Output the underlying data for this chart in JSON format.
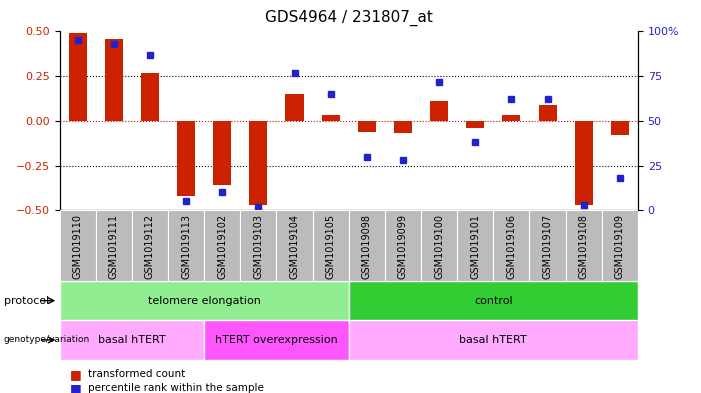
{
  "title": "GDS4964 / 231807_at",
  "samples": [
    "GSM1019110",
    "GSM1019111",
    "GSM1019112",
    "GSM1019113",
    "GSM1019102",
    "GSM1019103",
    "GSM1019104",
    "GSM1019105",
    "GSM1019098",
    "GSM1019099",
    "GSM1019100",
    "GSM1019101",
    "GSM1019106",
    "GSM1019107",
    "GSM1019108",
    "GSM1019109"
  ],
  "transformed_count": [
    0.49,
    0.46,
    0.27,
    -0.42,
    -0.36,
    -0.47,
    0.15,
    0.03,
    -0.06,
    -0.07,
    0.11,
    -0.04,
    0.03,
    0.09,
    -0.47,
    -0.08
  ],
  "percentile_rank": [
    95,
    93,
    87,
    5,
    10,
    2,
    77,
    65,
    30,
    28,
    72,
    38,
    62,
    62,
    3,
    18
  ],
  "ylim_left": [
    -0.5,
    0.5
  ],
  "ylim_right": [
    0,
    100
  ],
  "yticks_left": [
    -0.5,
    -0.25,
    0,
    0.25,
    0.5
  ],
  "yticks_right": [
    0,
    25,
    50,
    75,
    100
  ],
  "dotted_lines": [
    0.25,
    0.0,
    -0.25
  ],
  "protocol_groups": [
    {
      "label": "telomere elongation",
      "start": 0,
      "end": 8,
      "color": "#90EE90"
    },
    {
      "label": "control",
      "start": 8,
      "end": 16,
      "color": "#32CD32"
    }
  ],
  "genotype_groups": [
    {
      "label": "basal hTERT",
      "start": 0,
      "end": 4,
      "color": "#FFAAFF"
    },
    {
      "label": "hTERT overexpression",
      "start": 4,
      "end": 8,
      "color": "#FF55FF"
    },
    {
      "label": "basal hTERT",
      "start": 8,
      "end": 16,
      "color": "#FFAAFF"
    }
  ],
  "bar_color": "#CC2200",
  "dot_color": "#2222CC",
  "zero_line_color": "#CC0000",
  "tick_box_color": "#BBBBBB",
  "title_fontsize": 11,
  "axis_fontsize": 8,
  "tick_fontsize": 7,
  "label_fontsize": 8,
  "legend_fontsize": 7.5
}
